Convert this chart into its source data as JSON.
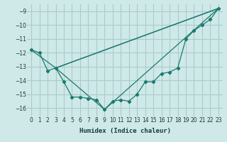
{
  "xlabel": "Humidex (Indice chaleur)",
  "xlim": [
    -0.5,
    23.5
  ],
  "ylim": [
    -16.6,
    -8.5
  ],
  "yticks": [
    -16,
    -15,
    -14,
    -13,
    -12,
    -11,
    -10,
    -9
  ],
  "xticks": [
    0,
    1,
    2,
    3,
    4,
    5,
    6,
    7,
    8,
    9,
    10,
    11,
    12,
    13,
    14,
    15,
    16,
    17,
    18,
    19,
    20,
    21,
    22,
    23
  ],
  "bg_color": "#cfe8e8",
  "grid_color": "#aacccc",
  "line_color": "#1a7a6e",
  "series": [
    {
      "x": [
        0,
        1,
        2,
        3,
        4,
        5,
        6,
        7,
        8,
        9,
        10,
        11,
        12,
        13,
        14,
        15,
        16,
        17,
        18,
        19,
        20,
        21,
        22,
        23
      ],
      "y": [
        -11.8,
        -12.0,
        -13.3,
        -13.1,
        -14.1,
        -15.2,
        -15.2,
        -15.3,
        -15.4,
        -16.1,
        -15.5,
        -15.4,
        -15.5,
        -15.0,
        -14.1,
        -14.1,
        -13.5,
        -13.4,
        -13.1,
        -11.0,
        -10.4,
        -10.0,
        -9.6,
        -8.8
      ],
      "has_markers": true
    },
    {
      "x": [
        0,
        3,
        23
      ],
      "y": [
        -11.8,
        -13.1,
        -8.8
      ],
      "has_markers": false
    },
    {
      "x": [
        3,
        23
      ],
      "y": [
        -13.1,
        -8.8
      ],
      "has_markers": false
    },
    {
      "x": [
        3,
        9,
        23
      ],
      "y": [
        -13.1,
        -16.1,
        -8.8
      ],
      "has_markers": false
    }
  ]
}
